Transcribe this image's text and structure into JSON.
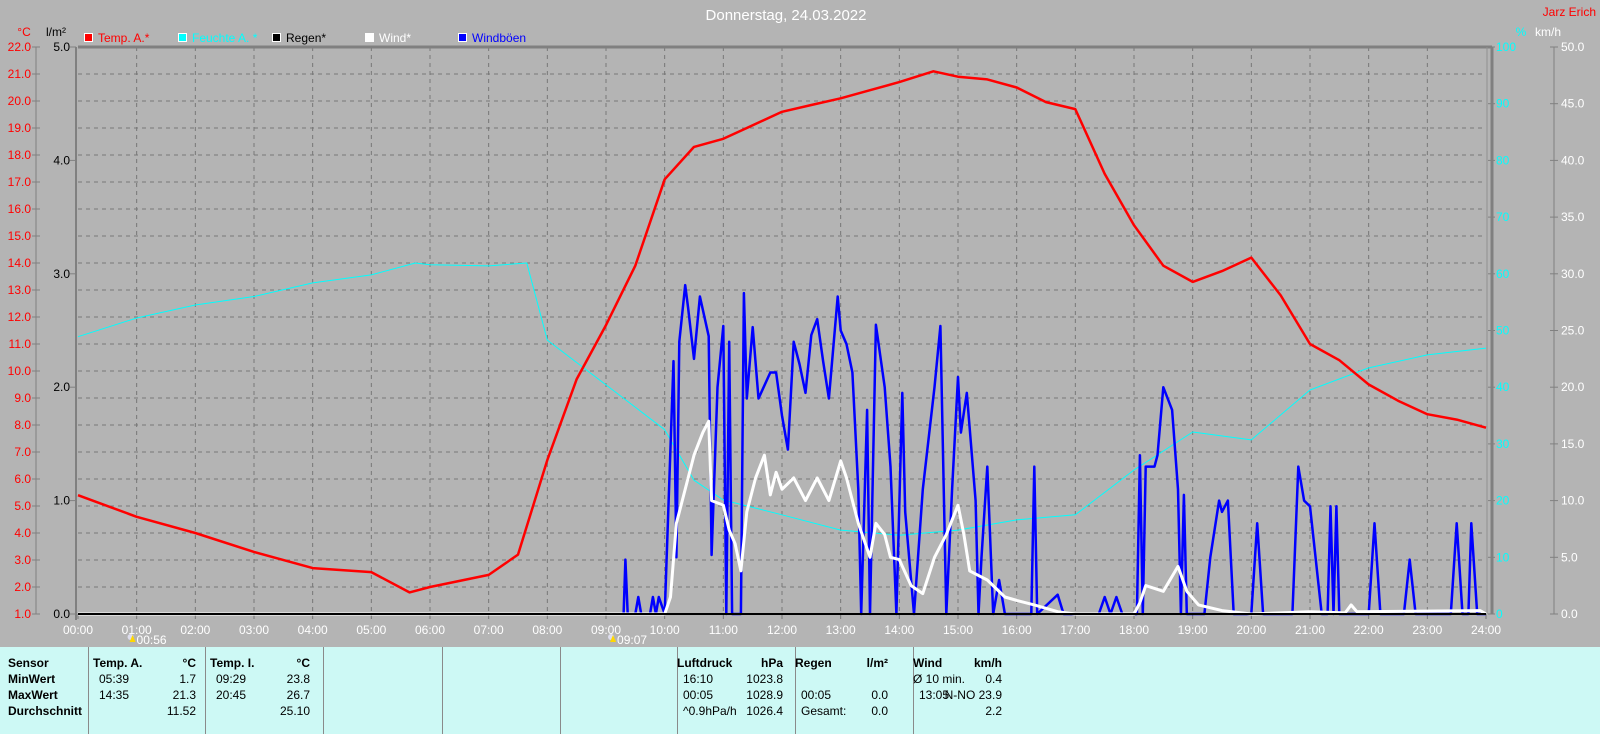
{
  "title": "Donnerstag, 24.03.2022",
  "author": "Jarz Erich",
  "legend": [
    {
      "label": "Temp. A.*",
      "color": "#ff0000"
    },
    {
      "label": "Feuchte A. *",
      "color": "#00ffff"
    },
    {
      "label": "Regen*",
      "color": "#000000"
    },
    {
      "label": "Wind*",
      "color": "#ffffff"
    },
    {
      "label": "Windböen",
      "color": "#0000ff"
    }
  ],
  "markers": [
    {
      "label": "00:56",
      "icon": "moon-sun-icon",
      "time": 0.93
    },
    {
      "label": "09:07",
      "icon": "sun-icon",
      "time": 9.12
    }
  ],
  "chart_data": {
    "type": "line",
    "title": "Donnerstag, 24.03.2022",
    "grid": true,
    "legend_position": "top-left",
    "x_ticks": [
      "00:00",
      "01:00",
      "02:00",
      "03:00",
      "04:00",
      "05:00",
      "06:00",
      "07:00",
      "08:00",
      "09:00",
      "10:00",
      "11:00",
      "12:00",
      "13:00",
      "14:00",
      "15:00",
      "16:00",
      "17:00",
      "18:00",
      "19:00",
      "20:00",
      "21:00",
      "22:00",
      "23:00",
      "24:00"
    ],
    "xlim": [
      0,
      24
    ],
    "axes": {
      "temp": {
        "unit": "°C",
        "range": [
          1.0,
          22.0
        ],
        "step": 1.0,
        "side": "left",
        "color": "#ff0000"
      },
      "rain": {
        "unit": "l/m²",
        "range": [
          0.0,
          5.0
        ],
        "step": 1.0,
        "side": "left",
        "color": "#000000"
      },
      "humidity": {
        "unit": "%",
        "range": [
          0,
          100
        ],
        "step": 10,
        "side": "right",
        "color": "#00ffff"
      },
      "wind": {
        "unit": "km/h",
        "range": [
          0.0,
          50.0
        ],
        "step": 5.0,
        "side": "right",
        "color": "#ffffff"
      }
    },
    "series": [
      {
        "name": "Temp. A.*",
        "axis": "temp",
        "color": "#ff0000",
        "x": [
          0,
          1,
          2,
          3,
          4,
          5,
          5.65,
          6,
          7,
          7.5,
          8,
          8.5,
          9,
          9.5,
          10,
          10.5,
          11,
          11.5,
          12,
          12.5,
          13,
          13.5,
          14,
          14.58,
          15,
          15.5,
          16,
          16.5,
          17,
          17.5,
          18,
          18.5,
          19,
          19.5,
          20,
          20.5,
          21,
          21.5,
          22,
          22.5,
          23,
          23.5,
          24
        ],
        "y": [
          5.4,
          4.6,
          4.0,
          3.3,
          2.7,
          2.55,
          1.8,
          2.0,
          2.45,
          3.2,
          6.7,
          9.7,
          11.7,
          13.9,
          17.1,
          18.3,
          18.6,
          19.1,
          19.6,
          19.85,
          20.1,
          20.4,
          20.7,
          21.1,
          20.9,
          20.8,
          20.5,
          19.96,
          19.7,
          17.3,
          15.4,
          13.9,
          13.3,
          13.7,
          14.2,
          12.8,
          11.0,
          10.4,
          9.5,
          8.9,
          8.4,
          8.2,
          7.9
        ]
      },
      {
        "name": "Feuchte A. *",
        "axis": "humidity",
        "color": "#00ffff",
        "x": [
          0,
          1,
          2,
          3,
          4,
          5,
          5.75,
          6,
          7,
          7.65,
          8,
          9,
          10,
          10.5,
          11,
          12,
          13,
          14,
          15,
          16,
          17,
          18,
          19,
          20,
          21,
          22,
          23,
          24
        ],
        "y": [
          48.9,
          52.2,
          54.5,
          56,
          58.4,
          59.8,
          61.9,
          61.6,
          61.4,
          61.9,
          48.3,
          40.4,
          32.5,
          23.6,
          20.1,
          17.5,
          14.8,
          13.9,
          14.8,
          16.6,
          17.5,
          25.4,
          32.1,
          30.7,
          39.5,
          43.4,
          45.7,
          46.9
        ]
      },
      {
        "name": "Regen*",
        "axis": "rain",
        "color": "#000000",
        "x": [
          0,
          24
        ],
        "y": [
          0,
          0
        ]
      },
      {
        "name": "Wind*",
        "axis": "wind",
        "color": "#ffffff",
        "x": [
          0,
          10,
          10.1,
          10.2,
          10.35,
          10.5,
          10.65,
          10.75,
          10.8,
          11,
          11.1,
          11.2,
          11.3,
          11.4,
          11.55,
          11.7,
          11.8,
          11.9,
          12,
          12.2,
          12.4,
          12.6,
          12.8,
          13,
          13.1,
          13.3,
          13.5,
          13.6,
          13.75,
          13.85,
          14,
          14.2,
          14.4,
          14.6,
          14.8,
          15,
          15.1,
          15.2,
          15.5,
          15.8,
          16,
          16.3,
          16.7,
          17,
          18,
          18.1,
          18.2,
          18.5,
          18.75,
          18.9,
          19.1,
          19.5,
          20,
          21,
          21.6,
          21.7,
          21.8,
          23.9,
          24
        ],
        "y": [
          0,
          0,
          1.5,
          8,
          11,
          14,
          16,
          17,
          10,
          9.6,
          7.4,
          6.2,
          3.8,
          9,
          12,
          14,
          10.5,
          12.5,
          11,
          12,
          10,
          12,
          10,
          13.5,
          12,
          8,
          5,
          8,
          7,
          5,
          4.8,
          2.5,
          1.8,
          5,
          7,
          9.6,
          7,
          3.8,
          3,
          1.5,
          1.2,
          0.8,
          0.2,
          0,
          0,
          1,
          2.5,
          2,
          4.2,
          2,
          0.8,
          0.3,
          0,
          0.2,
          0.1,
          0.8,
          0.2,
          0.3,
          0
        ]
      },
      {
        "name": "Windböen",
        "axis": "wind",
        "color": "#0000ff",
        "x": [
          0,
          9.3,
          9.33,
          9.37,
          9.5,
          9.55,
          9.6,
          9.75,
          9.8,
          9.85,
          9.9,
          10,
          10.15,
          10.2,
          10.25,
          10.35,
          10.4,
          10.5,
          10.6,
          10.75,
          10.8,
          10.9,
          11,
          11.05,
          11.1,
          11.15,
          11.3,
          11.35,
          11.4,
          11.5,
          11.6,
          11.8,
          11.9,
          12,
          12.1,
          12.2,
          12.3,
          12.4,
          12.5,
          12.6,
          12.7,
          12.8,
          12.95,
          13,
          13.1,
          13.2,
          13.3,
          13.35,
          13.45,
          13.5,
          13.6,
          13.75,
          13.85,
          13.95,
          14.05,
          14.1,
          14.25,
          14.4,
          14.6,
          14.7,
          14.8,
          14.9,
          15,
          15.05,
          15.15,
          15.3,
          15.35,
          15.4,
          15.5,
          15.6,
          15.7,
          15.8,
          16.25,
          16.3,
          16.35,
          16.7,
          16.8,
          17.4,
          17.5,
          17.6,
          17.7,
          17.8,
          18.05,
          18.1,
          18.15,
          18.2,
          18.35,
          18.4,
          18.5,
          18.65,
          18.75,
          18.8,
          18.85,
          18.9,
          19.2,
          19.3,
          19.45,
          19.5,
          19.6,
          19.7,
          20,
          20.1,
          20.2,
          20.7,
          20.8,
          20.9,
          21,
          21.2,
          21.3,
          21.35,
          21.4,
          21.45,
          21.5,
          22,
          22.1,
          22.2,
          22.6,
          22.7,
          22.8,
          23.4,
          23.5,
          23.6,
          23.7,
          23.75,
          23.85,
          24
        ],
        "y": [
          0,
          0,
          4.8,
          0,
          0,
          1.5,
          0,
          0,
          1.5,
          0,
          1.5,
          0,
          22.3,
          5,
          24,
          29,
          27,
          22.5,
          28,
          24.5,
          5.2,
          20,
          25.4,
          0,
          24,
          0,
          0,
          28.3,
          19,
          25.3,
          19,
          21.3,
          21.3,
          17.5,
          14.5,
          24,
          22,
          19.5,
          24.6,
          26,
          22.3,
          19,
          28,
          25,
          23.8,
          21.3,
          11,
          0,
          18,
          0,
          25.5,
          20,
          13,
          0,
          19.5,
          9,
          0,
          11,
          20,
          25.4,
          0,
          11,
          20.9,
          16,
          19.5,
          10,
          0,
          5,
          13,
          0,
          3,
          0,
          0,
          13,
          0,
          1.7,
          0,
          0,
          1.5,
          0,
          1.5,
          0,
          0,
          14,
          0,
          13,
          13,
          14,
          20,
          18,
          11,
          0,
          10.5,
          0,
          0,
          5,
          10,
          9,
          10,
          0,
          0,
          8,
          0,
          0,
          13,
          10,
          9.5,
          0,
          0,
          9.5,
          0,
          9.5,
          0,
          0,
          8,
          0,
          0,
          4.8,
          0,
          0,
          8,
          0,
          0,
          8,
          0,
          0
        ]
      }
    ]
  },
  "table": {
    "groups": [
      {
        "rows": [
          [
            "Sensor"
          ],
          [
            "MinWert"
          ],
          [
            "MaxWert"
          ],
          [
            "Durchschnitt"
          ]
        ]
      },
      {
        "header": "Temp. A.",
        "unit": "°C",
        "rows": [
          [
            "05:39",
            "1.7"
          ],
          [
            "14:35",
            "21.3"
          ],
          [
            "",
            "11.52"
          ]
        ]
      },
      {
        "header": "Temp. I.",
        "unit": "°C",
        "rows": [
          [
            "09:29",
            "23.8"
          ],
          [
            "20:45",
            "26.7"
          ],
          [
            "",
            "25.10"
          ]
        ]
      },
      {
        "header": "Luftdruck",
        "unit": "hPa",
        "rows": [
          [
            "16:10",
            "1023.8"
          ],
          [
            "00:05",
            "1028.9"
          ],
          [
            "^0.9hPa/h",
            "1026.4"
          ]
        ]
      },
      {
        "header": "Regen",
        "unit": "l/m²",
        "rows": [
          [
            "",
            ""
          ],
          [
            "00:05",
            "0.0"
          ],
          [
            "Gesamt:",
            "0.0"
          ]
        ]
      },
      {
        "header": "Wind",
        "unit": "km/h",
        "rows": [
          [
            "Ø 10 min.",
            "0.4"
          ],
          [
            "13:05",
            "N-NO 23.9"
          ],
          [
            "",
            "2.2"
          ]
        ]
      }
    ]
  }
}
